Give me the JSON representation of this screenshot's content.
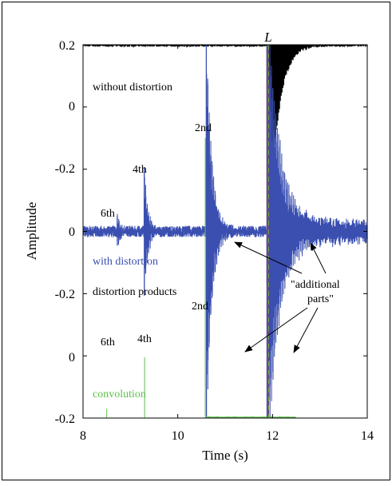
{
  "chart_data": {
    "type": "line",
    "xlabel": "Time (s)",
    "ylabel": "Amplitude",
    "xlim": [
      8,
      14
    ],
    "ylim": [
      -0.2,
      0.2
    ],
    "x_ticks": [
      "8",
      "10",
      "12",
      "14"
    ],
    "y_ticks": [
      "0.2",
      "0",
      "-0.2",
      "0",
      "-0.2",
      "0",
      "-0.2"
    ],
    "grid": false,
    "marker_line": {
      "label": "L",
      "x": 11.9
    },
    "series": [
      {
        "name": "without distortion",
        "color": "#000000",
        "baseline": 0.2,
        "noise": 0.002,
        "bursts": [
          {
            "t": 11.88,
            "amp": 0.26,
            "decay": 5,
            "freq": 38
          }
        ]
      },
      {
        "name": "with distortion",
        "color": "#3a4fb0",
        "baseline": 0.0,
        "noise": 0.006,
        "bursts": [
          {
            "t": 8.72,
            "amp": 0.02,
            "decay": 20,
            "freq": 36
          },
          {
            "t": 9.29,
            "amp": 0.075,
            "decay": 14,
            "freq": 36
          },
          {
            "t": 10.6,
            "amp": 0.23,
            "decay": 9,
            "freq": 36
          },
          {
            "t": 11.88,
            "amp": 0.26,
            "decay": 4,
            "freq": 36
          },
          {
            "t": 12.3,
            "amp": 0.02,
            "decay": 2,
            "freq": 36
          }
        ]
      },
      {
        "name": "convolution",
        "color": "#5cbf4a",
        "baseline": -0.2,
        "noise": 0.001,
        "spikes": [
          {
            "t": 8.5,
            "height": 0.01,
            "label": "6th"
          },
          {
            "t": 9.3,
            "height": 0.065,
            "label": "4th"
          },
          {
            "t": 10.58,
            "height": 0.3,
            "label": "2nd"
          }
        ]
      }
    ],
    "annotations": {
      "without_distortion": "without distortion",
      "with_distortion": "with distortion",
      "distortion_products": "distortion products",
      "convolution": "convolution",
      "additional_parts_line1": "\"additional",
      "additional_parts_line2": "parts\"",
      "blue_6th": "6th",
      "blue_4th": "4th",
      "blue_2nd": "2nd",
      "green_6th": "6th",
      "green_4th": "4th",
      "green_2nd": "2nd"
    }
  }
}
